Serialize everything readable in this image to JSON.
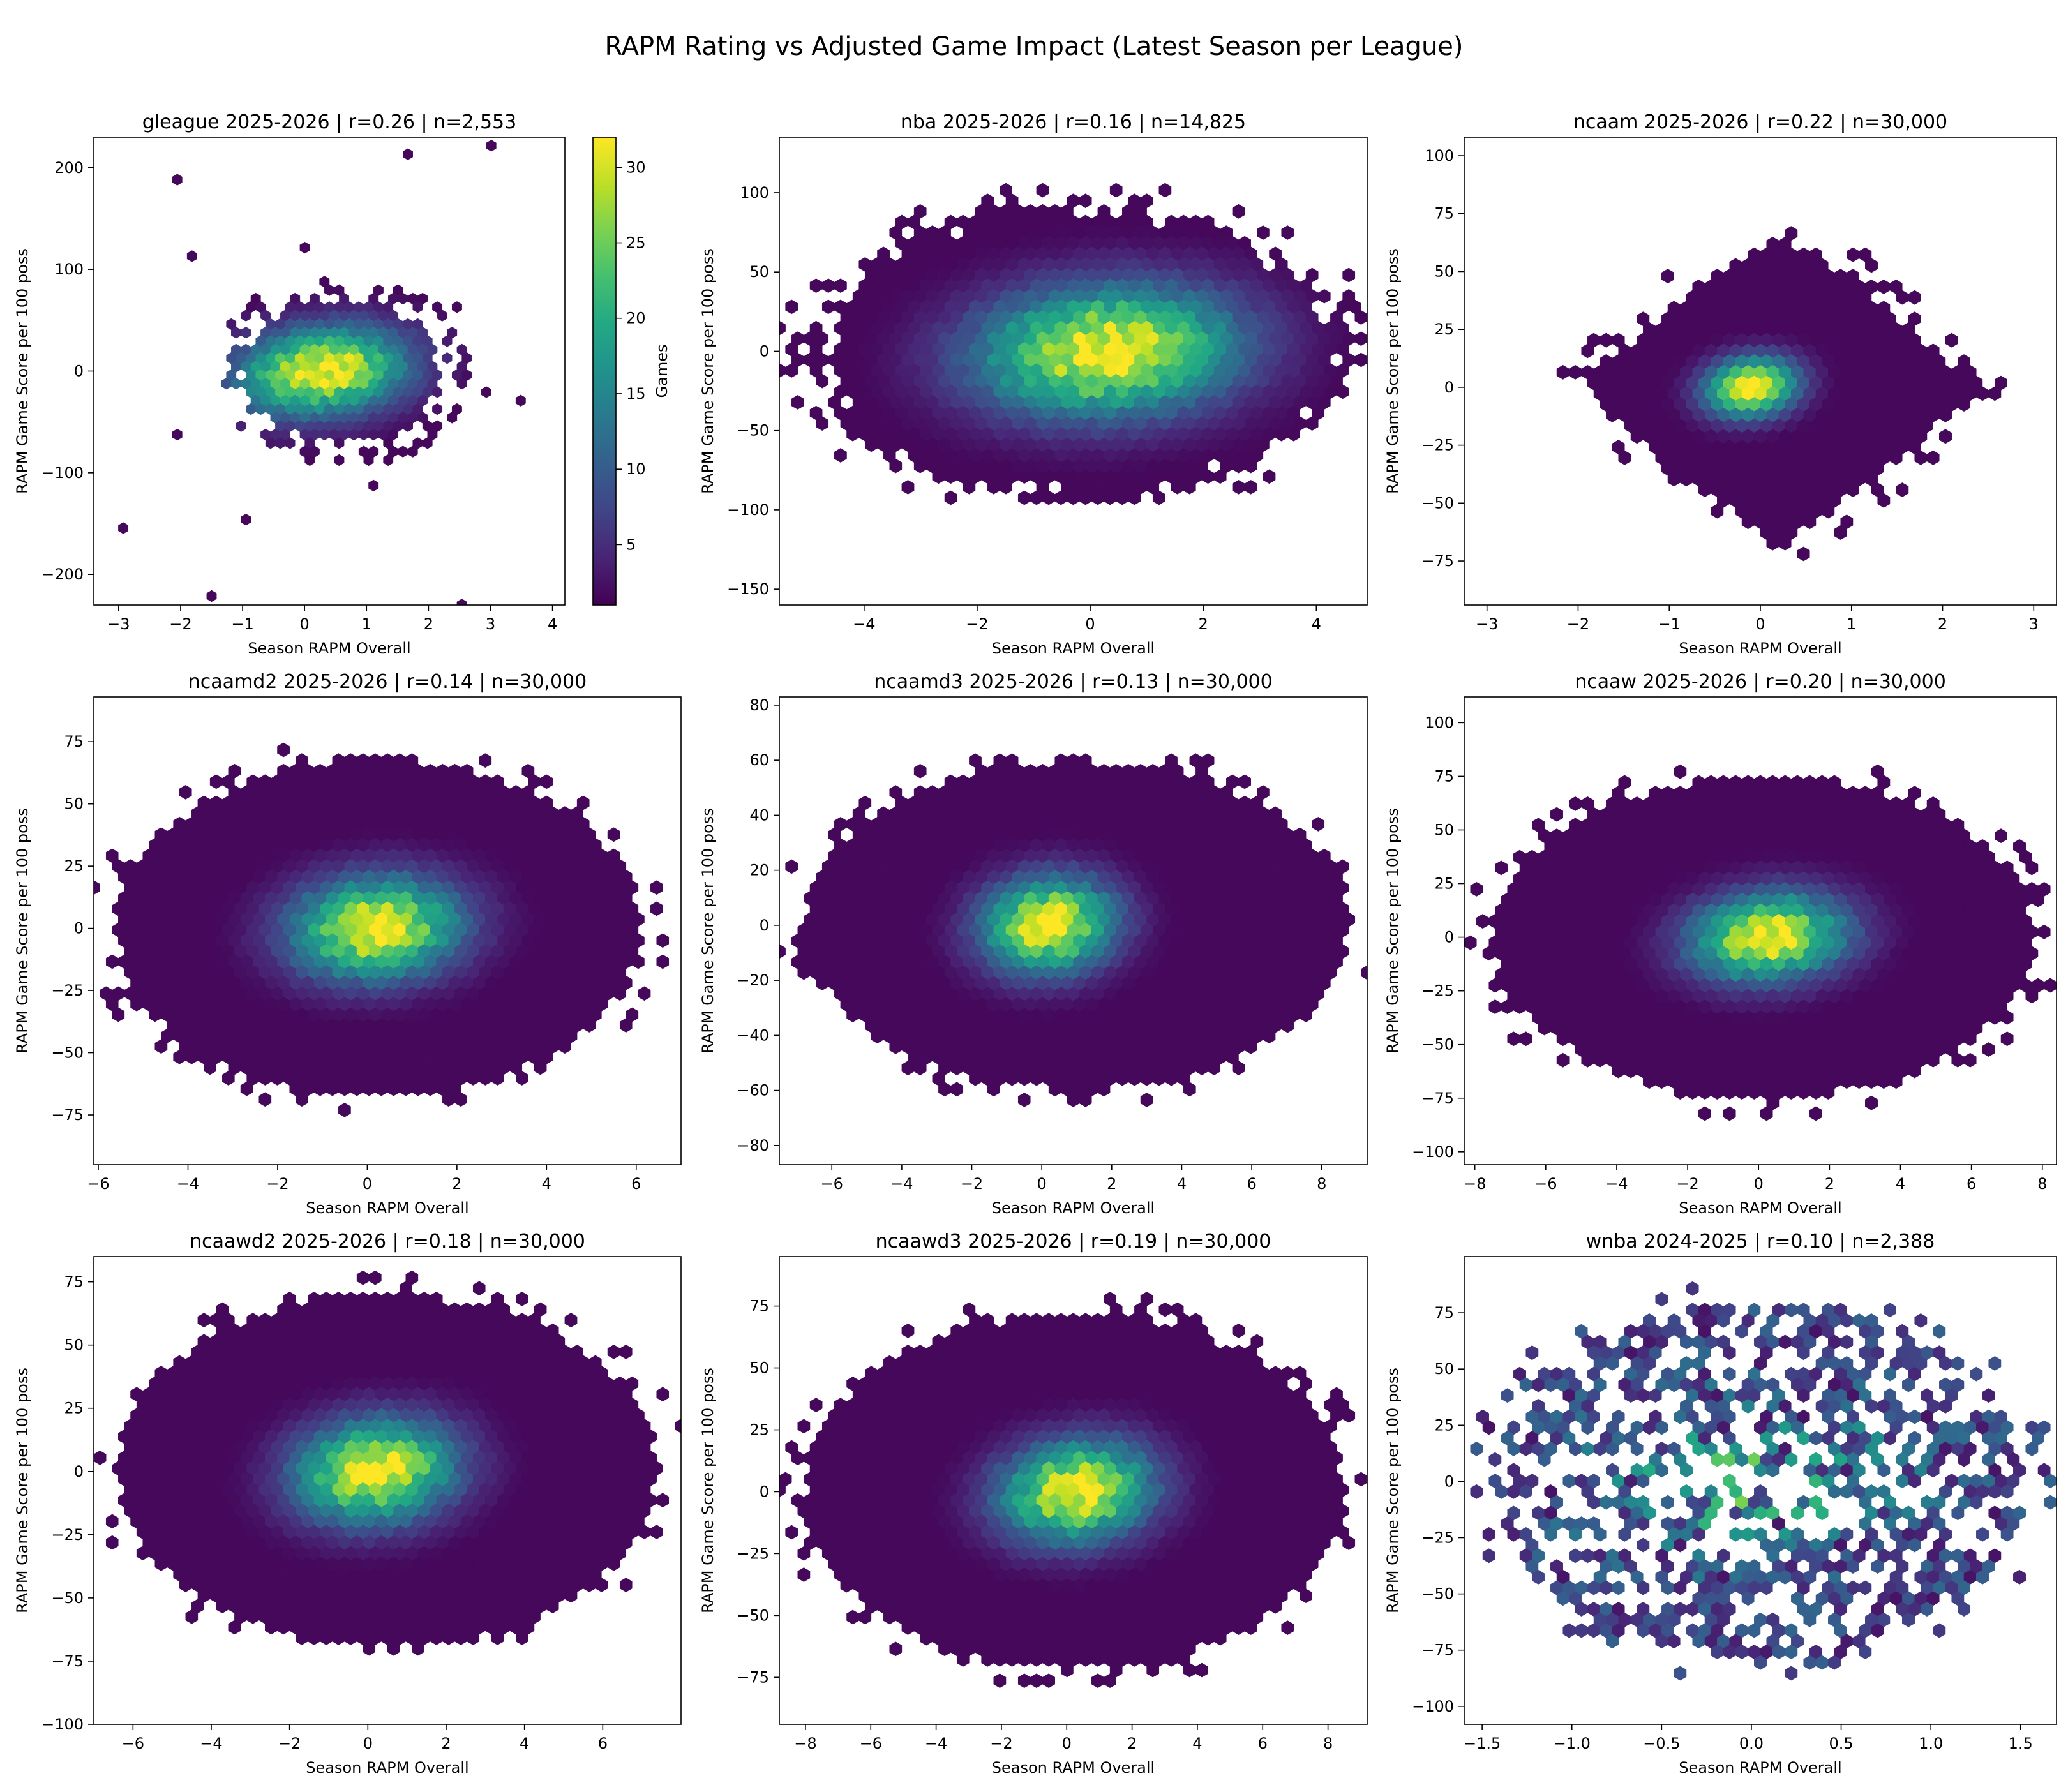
{
  "suptitle": "RAPM Rating vs Adjusted Game Impact (Latest Season per League)",
  "colorbar": {
    "label": "Games",
    "ticks": [
      5,
      10,
      15,
      20,
      25,
      30
    ],
    "vmin": 1,
    "vmax": 32,
    "colormap": "viridis"
  },
  "chart_data": [
    {
      "type": "heatmap",
      "league": "gleague",
      "title": "gleague 2025-2026 | r=0.26 | n=2,553",
      "xlabel": "Season RAPM Overall",
      "ylabel": "RAPM Game Score per 100 poss",
      "xlim": [
        -3.4,
        4.2
      ],
      "ylim": [
        -230,
        230
      ],
      "xticks": [
        -3,
        -2,
        -1,
        0,
        1,
        2,
        3,
        4
      ],
      "yticks": [
        -200,
        -100,
        0,
        100,
        200
      ],
      "r": 0.26,
      "n": 2553,
      "x_center": 0.3,
      "x_sd": 0.95,
      "y_center": 0,
      "y_sd": 30,
      "x_spread_lo": -1.5,
      "x_spread_hi": 2.7,
      "y_spread": 95,
      "peak_count": 32,
      "style": "tight"
    },
    {
      "type": "heatmap",
      "league": "nba",
      "title": "nba 2025-2026 | r=0.16 | n=14,825",
      "xlabel": "Season RAPM Overall",
      "ylabel": "RAPM Game Score per 100 poss",
      "xlim": [
        -5.5,
        4.9
      ],
      "ylim": [
        -160,
        135
      ],
      "xticks": [
        -4,
        -2,
        0,
        2,
        4
      ],
      "yticks": [
        -150,
        -100,
        -50,
        0,
        50,
        100
      ],
      "r": 0.16,
      "n": 14825,
      "x_center": 0.3,
      "x_sd": 1.6,
      "y_center": 0,
      "y_sd": 28,
      "x_spread_lo": -5.0,
      "x_spread_hi": 4.6,
      "y_spread": 95,
      "peak_count": 30,
      "style": "wide"
    },
    {
      "type": "heatmap",
      "league": "ncaam",
      "title": "ncaam 2025-2026 | r=0.22 | n=30,000",
      "xlabel": "Season RAPM Overall",
      "ylabel": "RAPM Game Score per 100 poss",
      "xlim": [
        -3.25,
        3.25
      ],
      "ylim": [
        -94,
        108
      ],
      "xticks": [
        -3,
        -2,
        -1,
        0,
        1,
        2,
        3
      ],
      "yticks": [
        -75,
        -50,
        -25,
        0,
        25,
        50,
        75,
        100
      ],
      "r": 0.22,
      "n": 30000,
      "x_center": -0.1,
      "x_sd": 0.55,
      "y_center": 0,
      "y_sd": 14,
      "x_spread_lo": -2.2,
      "x_spread_hi": 2.6,
      "y_spread": 75,
      "peak_count": 32,
      "style": "diamond"
    },
    {
      "type": "heatmap",
      "league": "ncaamd2",
      "title": "ncaamd2 2025-2026 | r=0.14 | n=30,000",
      "xlabel": "Season RAPM Overall",
      "ylabel": "RAPM Game Score per 100 poss",
      "xlim": [
        -6.1,
        7.0
      ],
      "ylim": [
        -95,
        93
      ],
      "xticks": [
        -6,
        -4,
        -2,
        0,
        2,
        4,
        6
      ],
      "yticks": [
        -75,
        -50,
        -25,
        0,
        25,
        50,
        75
      ],
      "r": 0.14,
      "n": 30000,
      "x_center": 0.2,
      "x_sd": 1.3,
      "y_center": 0,
      "y_sd": 14,
      "x_spread_lo": -5.6,
      "x_spread_hi": 6.1,
      "y_spread": 68,
      "peak_count": 32,
      "style": "oval"
    },
    {
      "type": "heatmap",
      "league": "ncaamd3",
      "title": "ncaamd3 2025-2026 | r=0.13 | n=30,000",
      "xlabel": "Season RAPM Overall",
      "ylabel": "RAPM Game Score per 100 poss",
      "xlim": [
        -7.5,
        9.3
      ],
      "ylim": [
        -87,
        83
      ],
      "xticks": [
        -6,
        -4,
        -2,
        0,
        2,
        4,
        6,
        8
      ],
      "yticks": [
        -80,
        -60,
        -40,
        -20,
        0,
        20,
        40,
        60,
        80
      ],
      "r": 0.13,
      "n": 30000,
      "x_center": 0.2,
      "x_sd": 1.3,
      "y_center": 0,
      "y_sd": 12,
      "x_spread_lo": -6.8,
      "x_spread_hi": 8.8,
      "y_spread": 60,
      "peak_count": 32,
      "style": "oval"
    },
    {
      "type": "heatmap",
      "league": "ncaaw",
      "title": "ncaaw 2025-2026 | r=0.20 | n=30,000",
      "xlabel": "Season RAPM Overall",
      "ylabel": "RAPM Game Score per 100 poss",
      "xlim": [
        -8.3,
        8.4
      ],
      "ylim": [
        -106,
        112
      ],
      "xticks": [
        -8,
        -6,
        -4,
        -2,
        0,
        2,
        4,
        6,
        8
      ],
      "yticks": [
        -100,
        -75,
        -50,
        -25,
        0,
        25,
        50,
        75,
        100
      ],
      "r": 0.2,
      "n": 30000,
      "x_center": 0.3,
      "x_sd": 1.5,
      "y_center": 0,
      "y_sd": 14,
      "x_spread_lo": -7.5,
      "x_spread_hi": 7.8,
      "y_spread": 75,
      "peak_count": 32,
      "style": "oval"
    },
    {
      "type": "heatmap",
      "league": "ncaawd2",
      "title": "ncaawd2 2025-2026 | r=0.18 | n=30,000",
      "xlabel": "Season RAPM Overall",
      "ylabel": "RAPM Game Score per 100 poss",
      "xlim": [
        -7.0,
        8.0
      ],
      "ylim": [
        -100,
        85
      ],
      "xticks": [
        -6,
        -4,
        -2,
        0,
        2,
        4,
        6
      ],
      "yticks": [
        -100,
        -75,
        -50,
        -25,
        0,
        25,
        50,
        75
      ],
      "r": 0.18,
      "n": 30000,
      "x_center": 0.2,
      "x_sd": 1.4,
      "y_center": 0,
      "y_sd": 14,
      "x_spread_lo": -6.4,
      "x_spread_hi": 7.4,
      "y_spread": 70,
      "peak_count": 32,
      "style": "oval"
    },
    {
      "type": "heatmap",
      "league": "ncaawd3",
      "title": "ncaawd3 2025-2026 | r=0.19 | n=30,000",
      "xlabel": "Season RAPM Overall",
      "ylabel": "RAPM Game Score per 100 poss",
      "xlim": [
        -8.8,
        9.2
      ],
      "ylim": [
        -94,
        95
      ],
      "xticks": [
        -8,
        -6,
        -4,
        -2,
        0,
        2,
        4,
        6,
        8
      ],
      "yticks": [
        -75,
        -50,
        -25,
        0,
        25,
        50,
        75
      ],
      "r": 0.19,
      "n": 30000,
      "x_center": 0.3,
      "x_sd": 1.6,
      "y_center": 0,
      "y_sd": 14,
      "x_spread_lo": -8.0,
      "x_spread_hi": 8.5,
      "y_spread": 72,
      "peak_count": 32,
      "style": "oval"
    },
    {
      "type": "heatmap",
      "league": "wnba",
      "title": "wnba 2024-2025 | r=0.10 | n=2,388",
      "xlabel": "Season RAPM Overall",
      "ylabel": "RAPM Game Score per 100 poss",
      "xlim": [
        -1.6,
        1.7
      ],
      "ylim": [
        -108,
        100
      ],
      "xticks": [
        -1.5,
        -1.0,
        -0.5,
        0.0,
        0.5,
        1.0,
        1.5
      ],
      "yticks": [
        -100,
        -75,
        -50,
        -25,
        0,
        25,
        50,
        75
      ],
      "r": 0.1,
      "n": 2388,
      "x_center": 0.0,
      "x_sd": 0.55,
      "y_center": 0,
      "y_sd": 22,
      "x_spread_lo": -1.45,
      "x_spread_hi": 1.55,
      "y_spread": 80,
      "peak_count": 25,
      "style": "sparse"
    }
  ]
}
